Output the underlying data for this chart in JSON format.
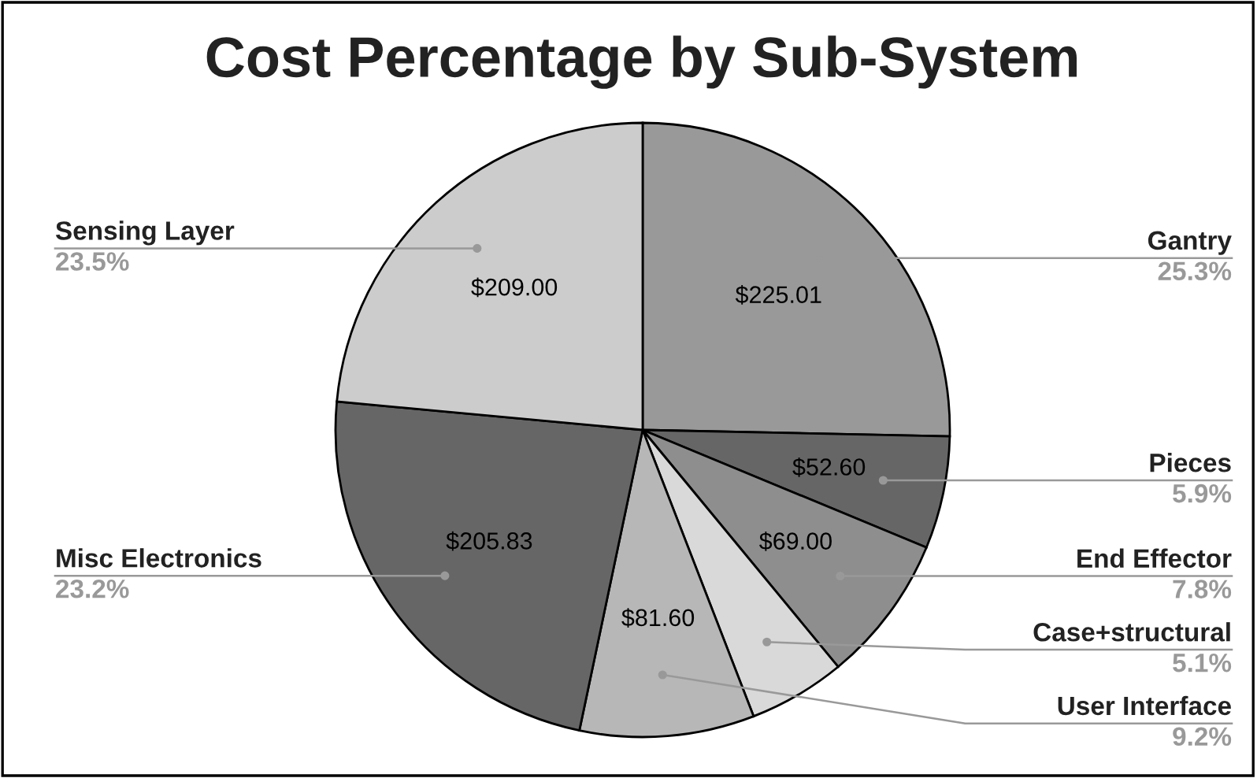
{
  "chart_data": {
    "type": "pie",
    "title": "Cost Percentage by Sub-System",
    "categories": [
      "Gantry",
      "Pieces",
      "End Effector",
      "Case+structural",
      "User Interface",
      "Misc Electronics",
      "Sensing Layer"
    ],
    "values": [
      225.01,
      52.6,
      69.0,
      45.3,
      81.6,
      205.83,
      209.0
    ],
    "annotations": [
      "25.3%",
      "5.9%",
      "7.8%",
      "5.1%",
      "9.2%",
      "23.2%",
      "23.5%"
    ],
    "colors": [
      "#999999",
      "#666666",
      "#8e8e8e",
      "#d9d9d9",
      "#b7b7b7",
      "#666666",
      "#cccccc"
    ],
    "value_labels": [
      "$225.01",
      "$52.60",
      "$69.00",
      null,
      "$81.60",
      "$205.83",
      "$209.00"
    ]
  }
}
